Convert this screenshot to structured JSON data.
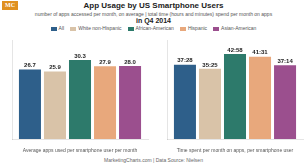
{
  "chart_data": [
    {
      "type": "bar",
      "title": "App Usage by US Smartphone Users",
      "subtitle": "number of apps accessed per month, on average | total time (hours and minutes) spend per month on apps",
      "annotations": [
        "in Q4 2014",
        "MarketingCharts.com | Data Source: Nielsen",
        "MC"
      ],
      "xlabel": "Average apps used per smartphone user per month",
      "categories": [
        null
      ],
      "series": [
        {
          "name": "All",
          "color": "#2e5f8a",
          "values": [
            26.7
          ]
        },
        {
          "name": "White non-Hispanic",
          "color": "#d9c3a8",
          "values": [
            25.9
          ]
        },
        {
          "name": "African-American",
          "color": "#2d7a6b",
          "values": [
            30.3
          ]
        },
        {
          "name": "Hispanic",
          "color": "#e8a87c",
          "values": [
            27.9
          ]
        },
        {
          "name": "Asian-American",
          "color": "#9b4f8e",
          "values": [
            28.0
          ],
          "value_labels": [
            "28.0"
          ]
        }
      ],
      "ylim": [
        0,
        38
      ],
      "grid": false,
      "legend": "top",
      "data_labels": true,
      "tick_labels": false
    },
    {
      "type": "bar",
      "xlabel": "Time spent per month on apps, per smartphone user",
      "categories": [
        null
      ],
      "series": [
        {
          "name": "All",
          "color": "#2e5f8a",
          "values": [
            37.47
          ],
          "value_labels": [
            "37:28"
          ]
        },
        {
          "name": "White non-Hispanic",
          "color": "#d9c3a8",
          "values": [
            35.42
          ],
          "value_labels": [
            "35:25"
          ]
        },
        {
          "name": "African-American",
          "color": "#2d7a6b",
          "values": [
            42.97
          ],
          "value_labels": [
            "42:58"
          ]
        },
        {
          "name": "Hispanic",
          "color": "#e8a87c",
          "values": [
            41.52
          ],
          "value_labels": [
            "41:31"
          ]
        },
        {
          "name": "Asian-American",
          "color": "#9b4f8e",
          "values": [
            37.23
          ],
          "value_labels": [
            "37:14"
          ]
        }
      ],
      "ylim": [
        0,
        50
      ],
      "grid": false,
      "data_labels": true,
      "tick_labels": false
    }
  ]
}
